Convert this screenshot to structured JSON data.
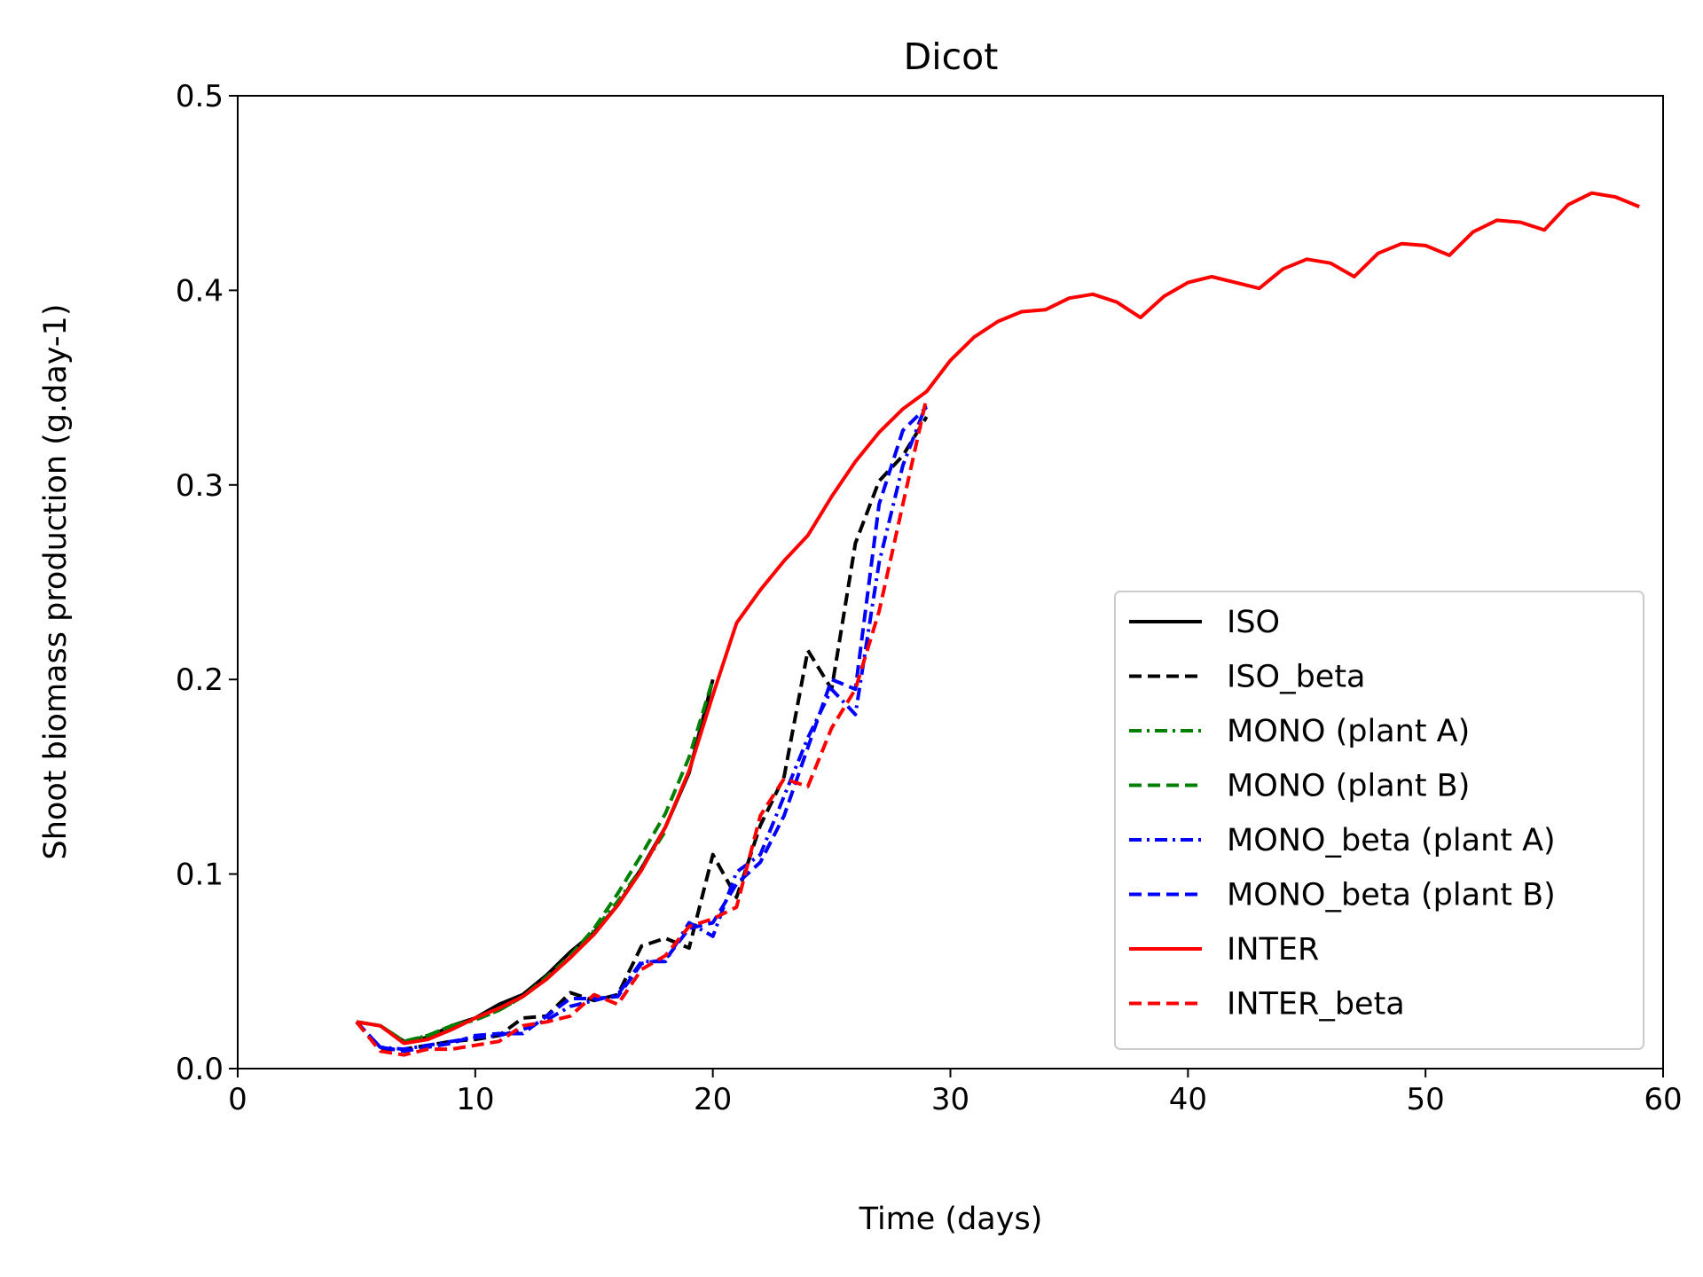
{
  "chart_data": {
    "type": "line",
    "title": "Dicot",
    "xlabel": "Time (days)",
    "ylabel": "Shoot biomass production (g.day-1)",
    "xlim": [
      0,
      60
    ],
    "ylim": [
      0,
      0.5
    ],
    "xticks": [
      0,
      10,
      20,
      30,
      40,
      50,
      60
    ],
    "xtick_labels": [
      "0",
      "10",
      "20",
      "30",
      "40",
      "50",
      "60"
    ],
    "yticks": [
      0.0,
      0.1,
      0.2,
      0.3,
      0.4,
      0.5
    ],
    "ytick_labels": [
      "0.0",
      "0.1",
      "0.2",
      "0.3",
      "0.4",
      "0.5"
    ],
    "grid": false,
    "legend_position": "bottom-right",
    "series": [
      {
        "name": "ISO",
        "color": "#000000",
        "dash": "solid",
        "x": [
          5,
          6,
          7,
          8,
          9,
          10,
          11,
          12,
          13,
          14,
          15,
          16,
          17,
          18,
          19,
          20
        ],
        "y": [
          0.024,
          0.022,
          0.014,
          0.016,
          0.022,
          0.026,
          0.033,
          0.038,
          0.048,
          0.06,
          0.07,
          0.084,
          0.103,
          0.124,
          0.152,
          0.2
        ]
      },
      {
        "name": "ISO_beta",
        "color": "#000000",
        "dash": "dashed",
        "x": [
          5,
          6,
          7,
          8,
          9,
          10,
          11,
          12,
          13,
          14,
          15,
          16,
          17,
          18,
          19,
          20,
          21,
          22,
          23,
          24,
          25,
          26,
          27,
          28,
          29
        ],
        "y": [
          0.024,
          0.01,
          0.01,
          0.012,
          0.014,
          0.015,
          0.017,
          0.026,
          0.027,
          0.039,
          0.035,
          0.038,
          0.063,
          0.067,
          0.062,
          0.11,
          0.088,
          0.125,
          0.15,
          0.215,
          0.195,
          0.27,
          0.302,
          0.315,
          0.335
        ]
      },
      {
        "name": "MONO (plant A)",
        "color": "#008000",
        "dash": "dashdot",
        "x": [
          5,
          6,
          7,
          8,
          9,
          10,
          11,
          12,
          13,
          14,
          15,
          16,
          17,
          18
        ],
        "y": [
          0.024,
          0.022,
          0.014,
          0.017,
          0.022,
          0.025,
          0.03,
          0.037,
          0.046,
          0.057,
          0.071,
          0.086,
          0.103,
          0.122
        ]
      },
      {
        "name": "MONO (plant B)",
        "color": "#008000",
        "dash": "dashed",
        "x": [
          5,
          6,
          7,
          8,
          9,
          10,
          11,
          12,
          13,
          14,
          15,
          16,
          17,
          18,
          19,
          20
        ],
        "y": [
          0.024,
          0.022,
          0.014,
          0.017,
          0.022,
          0.025,
          0.03,
          0.037,
          0.047,
          0.058,
          0.072,
          0.09,
          0.11,
          0.131,
          0.16,
          0.2
        ]
      },
      {
        "name": "MONO_beta (plant A)",
        "color": "#0000ff",
        "dash": "dashdot",
        "x": [
          5,
          6,
          7,
          8,
          9,
          10,
          11,
          12,
          13,
          14,
          15,
          16,
          17,
          18,
          19,
          20,
          21,
          22,
          23,
          24,
          25,
          26,
          27,
          28,
          29
        ],
        "y": [
          0.024,
          0.011,
          0.01,
          0.012,
          0.014,
          0.016,
          0.017,
          0.02,
          0.025,
          0.032,
          0.035,
          0.038,
          0.055,
          0.055,
          0.075,
          0.068,
          0.101,
          0.11,
          0.14,
          0.17,
          0.195,
          0.182,
          0.26,
          0.31,
          0.342
        ]
      },
      {
        "name": "MONO_beta (plant B)",
        "color": "#0000ff",
        "dash": "dashed",
        "x": [
          5,
          6,
          7,
          8,
          9,
          10,
          11,
          12,
          13,
          14,
          15,
          16,
          17,
          18,
          19,
          20,
          21,
          22,
          23,
          24,
          25,
          26,
          27,
          28,
          29
        ],
        "y": [
          0.024,
          0.011,
          0.009,
          0.011,
          0.013,
          0.017,
          0.018,
          0.018,
          0.027,
          0.036,
          0.036,
          0.037,
          0.054,
          0.056,
          0.072,
          0.075,
          0.095,
          0.106,
          0.13,
          0.165,
          0.2,
          0.195,
          0.29,
          0.328,
          0.34
        ]
      },
      {
        "name": "INTER",
        "color": "#ff0000",
        "dash": "solid",
        "x": [
          5,
          6,
          7,
          8,
          9,
          10,
          11,
          12,
          13,
          14,
          15,
          16,
          17,
          18,
          19,
          20,
          21,
          22,
          23,
          24,
          25,
          26,
          27,
          28,
          29,
          30,
          31,
          32,
          33,
          34,
          35,
          36,
          37,
          38,
          39,
          40,
          41,
          42,
          43,
          44,
          45,
          46,
          47,
          48,
          49,
          50,
          51,
          52,
          53,
          54,
          55,
          56,
          57,
          58,
          59
        ],
        "y": [
          0.024,
          0.022,
          0.013,
          0.015,
          0.02,
          0.026,
          0.031,
          0.037,
          0.046,
          0.057,
          0.069,
          0.084,
          0.102,
          0.124,
          0.153,
          0.192,
          0.229,
          0.246,
          0.261,
          0.274,
          0.294,
          0.312,
          0.327,
          0.339,
          0.348,
          0.364,
          0.376,
          0.384,
          0.389,
          0.39,
          0.396,
          0.398,
          0.394,
          0.386,
          0.397,
          0.404,
          0.407,
          0.404,
          0.401,
          0.411,
          0.416,
          0.414,
          0.407,
          0.419,
          0.424,
          0.423,
          0.418,
          0.43,
          0.436,
          0.435,
          0.431,
          0.444,
          0.45,
          0.448,
          0.443
        ]
      },
      {
        "name": "INTER_beta",
        "color": "#ff0000",
        "dash": "dashed",
        "x": [
          5,
          6,
          7,
          8,
          9,
          10,
          11,
          12,
          13,
          14,
          15,
          16,
          17,
          18,
          19,
          20,
          21,
          22,
          23,
          24,
          25,
          26,
          27,
          28,
          29
        ],
        "y": [
          0.024,
          0.009,
          0.007,
          0.01,
          0.01,
          0.012,
          0.014,
          0.022,
          0.024,
          0.027,
          0.038,
          0.033,
          0.051,
          0.058,
          0.073,
          0.077,
          0.083,
          0.13,
          0.149,
          0.145,
          0.175,
          0.195,
          0.235,
          0.29,
          0.345
        ]
      }
    ]
  }
}
